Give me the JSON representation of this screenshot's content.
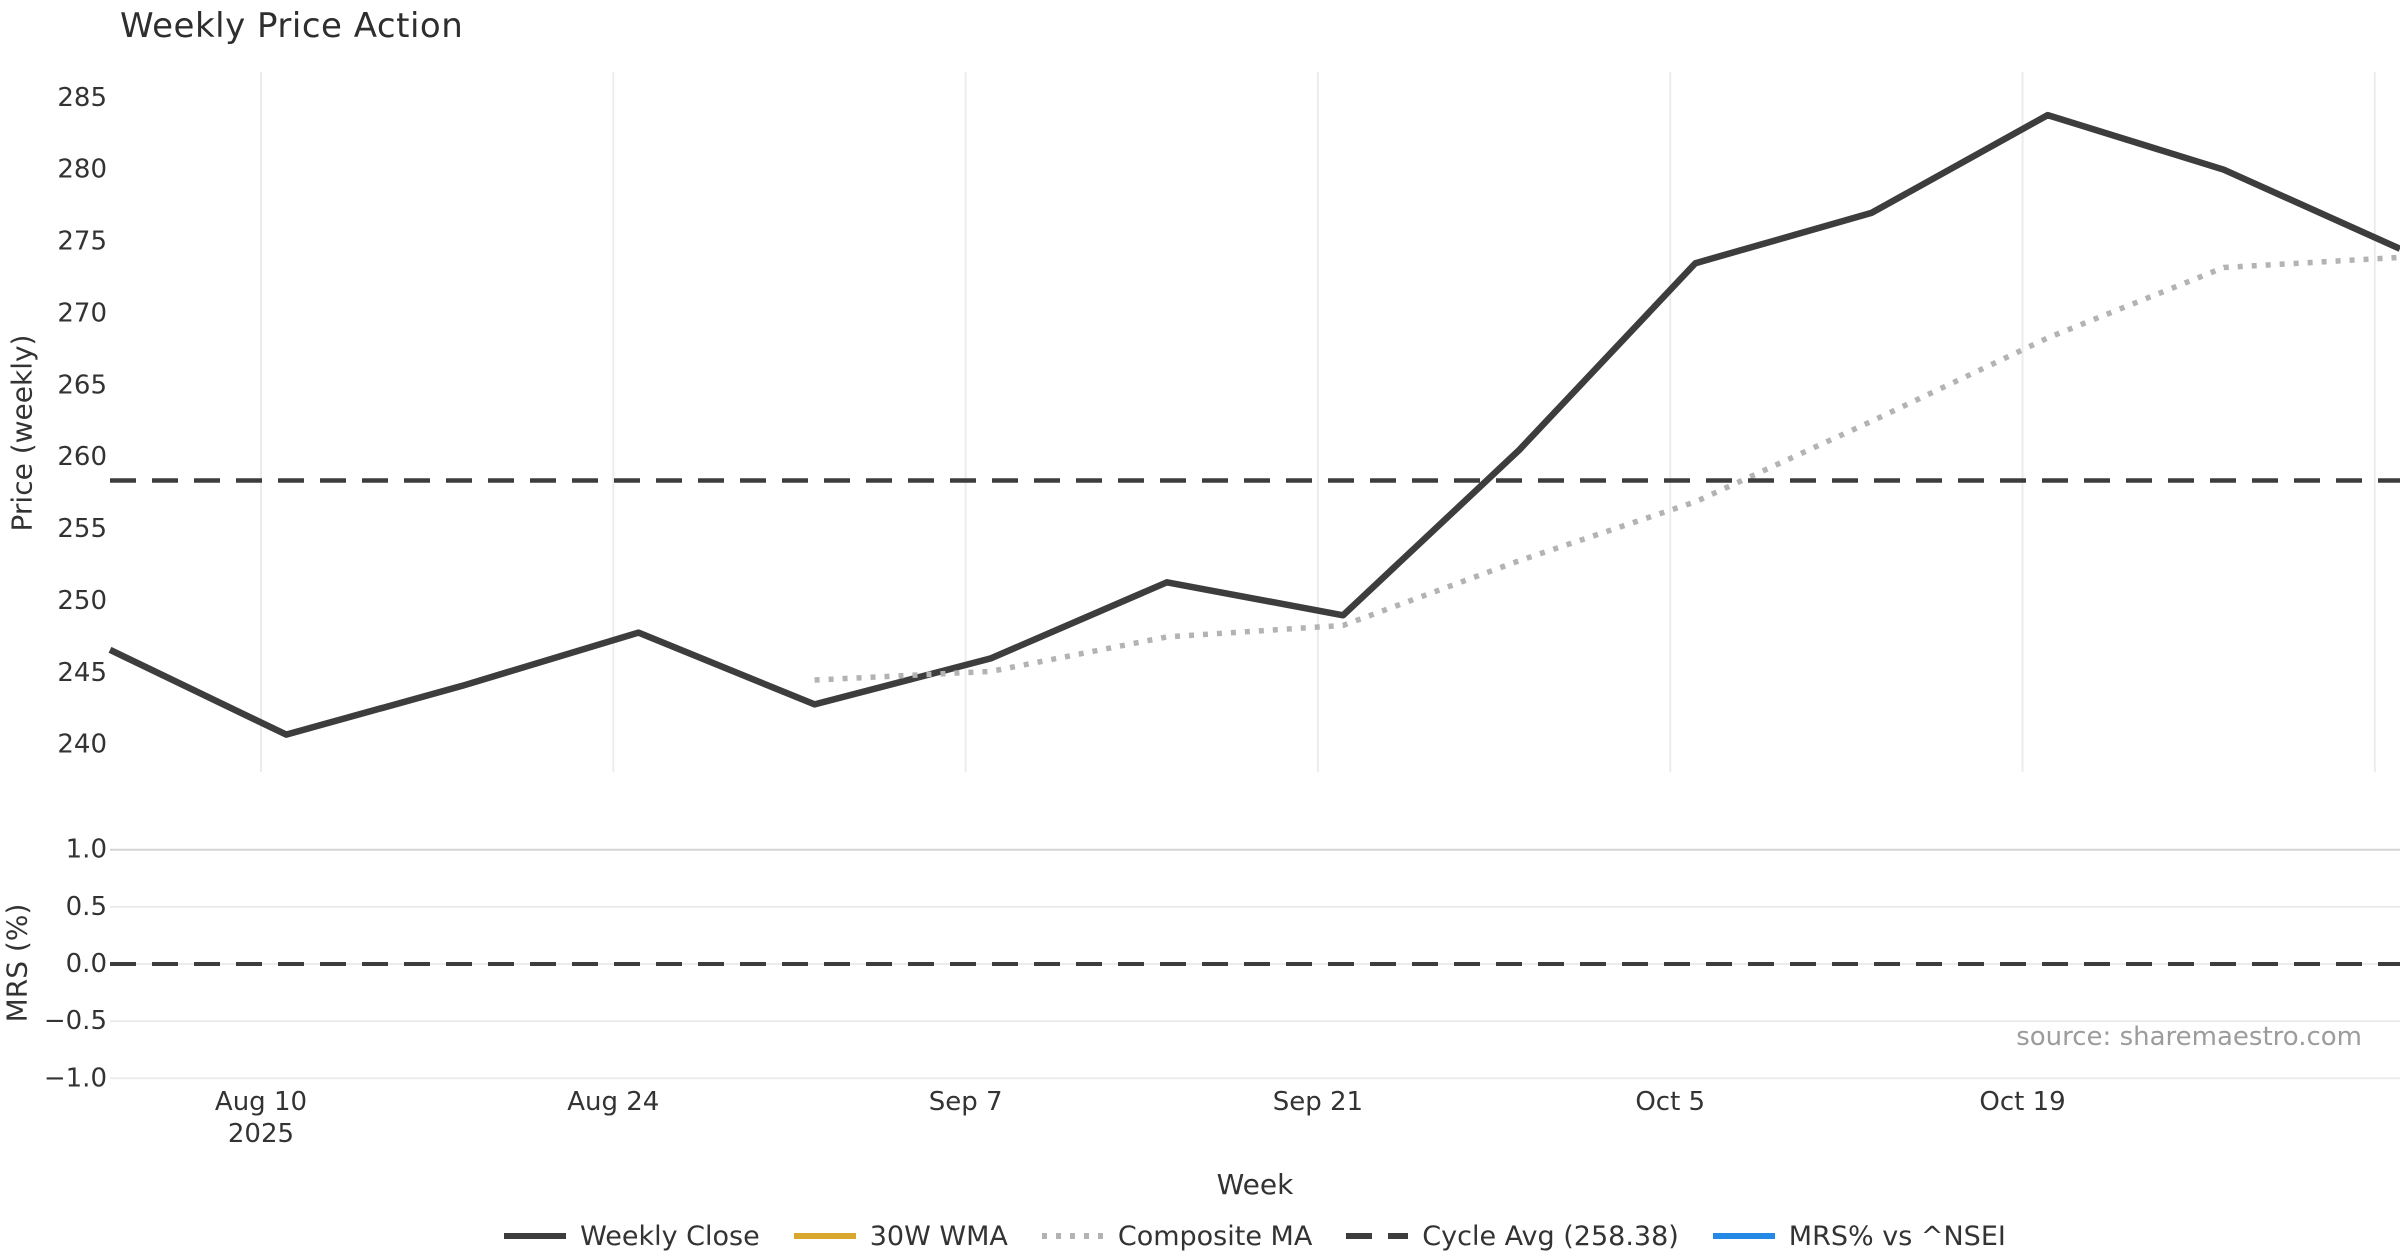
{
  "title": "Weekly Price Action",
  "source": "source: sharemaestro.com",
  "axes": {
    "price_label": "Price (weekly)",
    "mrs_label": "MRS (%)",
    "x_label": "Week"
  },
  "colors": {
    "close_line": "#3d3d3d",
    "wma_line": "#d9a62e",
    "composite_line": "#b3b3b3",
    "cycle_avg_line": "#3d3d3d",
    "mrs_line": "#2389e5",
    "gridline": "#ececec",
    "gridline_strong": "#d4d4d4",
    "tick_text": "#333333",
    "source_text": "#9c9c9c"
  },
  "legend": {
    "items": [
      {
        "label": "Weekly Close",
        "color": "#3d3d3d",
        "style": "solid"
      },
      {
        "label": "30W WMA",
        "color": "#d9a62e",
        "style": "solid"
      },
      {
        "label": "Composite MA",
        "color": "#b3b3b3",
        "style": "dotted"
      },
      {
        "label": "Cycle Avg (258.38)",
        "color": "#3d3d3d",
        "style": "dashed"
      },
      {
        "label": "MRS% vs ^NSEI",
        "color": "#2389e5",
        "style": "solid"
      }
    ]
  },
  "chart_data": {
    "type": "line",
    "title": "Weekly Price Action",
    "xlabel": "Week",
    "x_domain_days": [
      0,
      91
    ],
    "week_dates": [
      "Aug 4",
      "Aug 11",
      "Aug 18",
      "Aug 25",
      "Sep 1",
      "Sep 8",
      "Sep 15",
      "Sep 22",
      "Sep 29",
      "Oct 6",
      "Oct 13",
      "Oct 20",
      "Oct 27",
      "Nov 3"
    ],
    "x_ticks": [
      {
        "day": 6,
        "label": "Aug 10",
        "sub": "2025"
      },
      {
        "day": 20,
        "label": "Aug 24"
      },
      {
        "day": 34,
        "label": "Sep 7"
      },
      {
        "day": 48,
        "label": "Sep 21"
      },
      {
        "day": 62,
        "label": "Oct 5"
      },
      {
        "day": 76,
        "label": "Oct 19"
      },
      {
        "day": 90,
        "label": ""
      }
    ],
    "panels": [
      {
        "ylabel": "Price (weekly)",
        "ylim": [
          238.1,
          286.8
        ],
        "grid": "vertical",
        "yticks": [
          {
            "v": 285,
            "label": "285"
          },
          {
            "v": 280,
            "label": "280"
          },
          {
            "v": 275,
            "label": "275"
          },
          {
            "v": 270,
            "label": "270"
          },
          {
            "v": 265,
            "label": "265"
          },
          {
            "v": 260,
            "label": "260"
          },
          {
            "v": 255,
            "label": "255"
          },
          {
            "v": 250,
            "label": "250"
          },
          {
            "v": 245,
            "label": "245"
          },
          {
            "v": 240,
            "label": "240"
          }
        ],
        "series": [
          {
            "name": "Weekly Close",
            "style": "solid",
            "color": "#3d3d3d",
            "lw": 6.5,
            "x_days": [
              0,
              7,
              14,
              21,
              28,
              35,
              42,
              49,
              56,
              63,
              70,
              77,
              84,
              91
            ],
            "values": [
              246.6,
              240.7,
              244.1,
              247.8,
              242.8,
              246.0,
              251.3,
              249.0,
              260.5,
              273.5,
              277.0,
              283.8,
              280.0,
              274.5
            ]
          },
          {
            "name": "30W WMA",
            "style": "solid",
            "color": "#d9a62e",
            "lw": 6.5,
            "x_days": [],
            "values": []
          },
          {
            "name": "Composite MA",
            "style": "dotted",
            "color": "#b3b3b3",
            "lw": 5.5,
            "x_days": [
              28,
              35,
              42,
              49,
              56,
              63,
              70,
              77,
              84,
              91
            ],
            "values": [
              244.5,
              245.1,
              247.5,
              248.3,
              252.8,
              256.9,
              262.5,
              268.3,
              273.2,
              273.9
            ]
          },
          {
            "name": "Cycle Avg (258.38)",
            "style": "dashed",
            "color": "#3d3d3d",
            "lw": 4.5,
            "hline": 258.38
          }
        ]
      },
      {
        "ylabel": "MRS (%)",
        "ylim": [
          -1.12,
          1.12
        ],
        "grid": "horizontal",
        "yticks": [
          {
            "v": 1.0,
            "label": "1.0"
          },
          {
            "v": 0.5,
            "label": "0.5"
          },
          {
            "v": 0.0,
            "label": "0.0"
          },
          {
            "v": -0.5,
            "label": "−0.5"
          },
          {
            "v": -1.0,
            "label": "−1.0"
          }
        ],
        "series": [
          {
            "name": "MRS% vs ^NSEI",
            "style": "solid",
            "color": "#2389e5",
            "lw": 5,
            "x_days": [],
            "values": []
          },
          {
            "name": "Zero line",
            "style": "dashed",
            "color": "#3d3d3d",
            "lw": 4,
            "hline": 0.0
          }
        ]
      }
    ]
  }
}
